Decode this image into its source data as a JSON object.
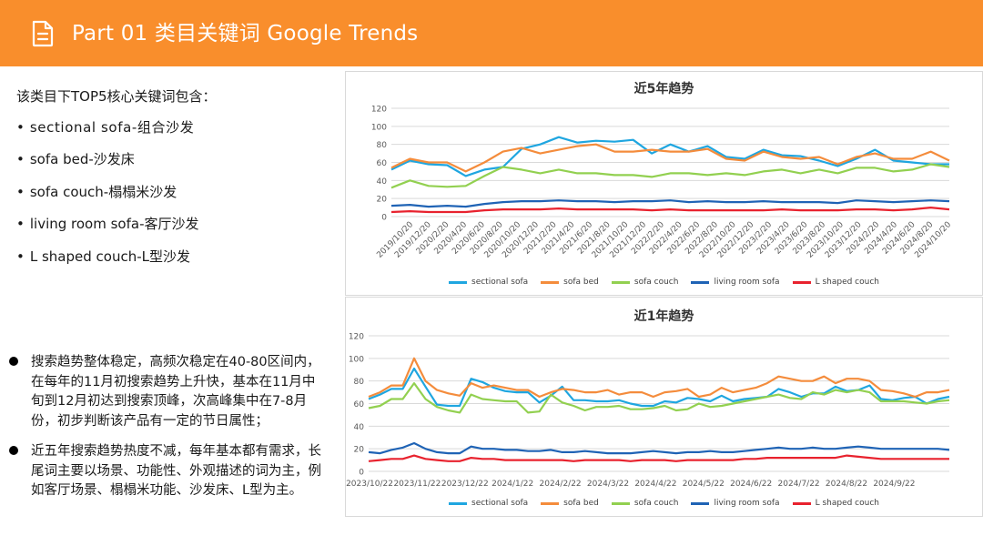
{
  "header": {
    "title": "Part 01 类目关键词 Google Trends"
  },
  "intro": "该类目下TOP5核心关键词包含：",
  "keywords": [
    {
      "bullet": "•",
      "label": "sectional sofa-组合沙发"
    },
    {
      "bullet": "•",
      "label": "sofa bed-沙发床"
    },
    {
      "bullet": "•",
      "label": "sofa couch-榻榻米沙发"
    },
    {
      "bullet": "•",
      "label": "living room sofa-客厅沙发"
    },
    {
      "bullet": "•",
      "label": "L shaped couch-L型沙发"
    }
  ],
  "notes": [
    "搜索趋势整体稳定，高频次稳定在40-80区间内，在每年的11月初搜索趋势上升快，基本在11月中旬到12月初达到搜索顶峰，次高峰集中在7-8月份，初步判断该产品有一定的节日属性；",
    "近五年搜索趋势热度不减，每年基本都有需求，长尾词主要以场景、功能性、外观描述的词为主，例如客厅场景、榻榻米功能、沙发床、L型为主。"
  ],
  "colors": {
    "header_bg": "#f98e2c",
    "sectional_sofa": "#1fa6e0",
    "sofa_bed": "#f48c3c",
    "sofa_couch": "#92d050",
    "living_room_sofa": "#1f63b5",
    "l_shaped_couch": "#e8222e"
  },
  "chart_data": [
    {
      "type": "line",
      "title": "近5年趋势",
      "ylim": [
        0,
        120
      ],
      "yticks": [
        0,
        20,
        40,
        60,
        80,
        100,
        120
      ],
      "grid": true,
      "legend": "bottom",
      "x_labels": [
        "2019/10/20",
        "2019/12/20",
        "2020/2/20",
        "2020/4/20",
        "2020/6/20",
        "2020/8/20",
        "2020/10/20",
        "2020/12/20",
        "2021/2/20",
        "2021/4/20",
        "2021/6/20",
        "2021/8/20",
        "2021/10/20",
        "2021/12/20",
        "2022/2/20",
        "2022/4/20",
        "2022/6/20",
        "2022/8/20",
        "2022/10/20",
        "2022/12/20",
        "2023/2/20",
        "2023/4/20",
        "2023/6/20",
        "2023/8/20",
        "2023/10/20",
        "2023/12/20",
        "2024/2/20",
        "2024/4/20",
        "2024/6/20",
        "2024/8/20",
        "2024/10/20"
      ],
      "series": [
        {
          "name": "sectional sofa",
          "values": [
            52,
            62,
            58,
            57,
            45,
            52,
            55,
            75,
            80,
            88,
            82,
            84,
            83,
            85,
            70,
            80,
            72,
            78,
            66,
            64,
            74,
            68,
            67,
            62,
            56,
            64,
            74,
            62,
            60,
            58,
            58
          ]
        },
        {
          "name": "sofa bed",
          "values": [
            54,
            64,
            60,
            60,
            50,
            60,
            72,
            76,
            70,
            74,
            78,
            80,
            72,
            72,
            74,
            72,
            72,
            75,
            64,
            62,
            72,
            66,
            64,
            66,
            58,
            66,
            70,
            64,
            64,
            72,
            62
          ]
        },
        {
          "name": "sofa couch",
          "values": [
            32,
            40,
            34,
            33,
            34,
            45,
            55,
            52,
            48,
            52,
            48,
            48,
            46,
            46,
            44,
            48,
            48,
            46,
            48,
            46,
            50,
            52,
            48,
            52,
            48,
            54,
            54,
            50,
            52,
            58,
            55
          ]
        },
        {
          "name": "living room sofa",
          "values": [
            12,
            13,
            11,
            12,
            11,
            14,
            16,
            17,
            17,
            18,
            17,
            17,
            16,
            17,
            17,
            18,
            16,
            17,
            16,
            16,
            17,
            16,
            16,
            16,
            15,
            18,
            17,
            16,
            17,
            18,
            17
          ]
        },
        {
          "name": "L shaped couch",
          "values": [
            5,
            6,
            5,
            5,
            5,
            7,
            8,
            8,
            8,
            9,
            8,
            8,
            8,
            8,
            7,
            8,
            7,
            7,
            7,
            7,
            7,
            8,
            7,
            7,
            7,
            8,
            8,
            7,
            8,
            10,
            8
          ]
        }
      ]
    },
    {
      "type": "line",
      "title": "近1年趋势",
      "ylim": [
        0,
        120
      ],
      "yticks": [
        0,
        20,
        40,
        60,
        80,
        100,
        120
      ],
      "grid": true,
      "legend": "bottom",
      "x_labels": [
        "2023/10/22",
        "2023/11/22",
        "2023/12/22",
        "2024/1/22",
        "2024/2/22",
        "2024/3/22",
        "2024/4/22",
        "2024/5/22",
        "2024/6/22",
        "2024/7/22",
        "2024/8/22",
        "2024/9/22"
      ],
      "series": [
        {
          "name": "sectional sofa",
          "values": [
            64,
            68,
            73,
            73,
            91,
            75,
            59,
            58,
            58,
            82,
            79,
            74,
            71,
            70,
            70,
            61,
            67,
            75,
            63,
            63,
            62,
            62,
            63,
            60,
            58,
            58,
            62,
            61,
            65,
            64,
            62,
            67,
            62,
            64,
            65,
            66,
            73,
            70,
            66,
            69,
            69,
            75,
            71,
            72,
            76,
            64,
            63,
            65,
            66,
            60,
            64,
            66
          ]
        },
        {
          "name": "sofa bed",
          "values": [
            66,
            70,
            76,
            76,
            100,
            80,
            72,
            69,
            67,
            78,
            74,
            76,
            74,
            72,
            72,
            66,
            70,
            73,
            72,
            70,
            70,
            72,
            68,
            70,
            70,
            66,
            70,
            71,
            73,
            66,
            68,
            74,
            70,
            72,
            74,
            78,
            84,
            82,
            80,
            80,
            84,
            78,
            82,
            82,
            80,
            72,
            71,
            69,
            66,
            70,
            70,
            72
          ]
        },
        {
          "name": "sofa couch",
          "values": [
            56,
            58,
            64,
            64,
            78,
            64,
            57,
            54,
            52,
            68,
            64,
            63,
            62,
            62,
            52,
            53,
            68,
            61,
            58,
            54,
            57,
            57,
            58,
            55,
            55,
            56,
            58,
            54,
            55,
            60,
            57,
            58,
            60,
            62,
            64,
            66,
            68,
            65,
            64,
            70,
            68,
            72,
            70,
            72,
            70,
            62,
            62,
            62,
            61,
            60,
            62,
            63
          ]
        },
        {
          "name": "living room sofa",
          "values": [
            17,
            16,
            19,
            21,
            25,
            20,
            17,
            16,
            16,
            22,
            20,
            20,
            19,
            19,
            18,
            18,
            19,
            17,
            17,
            18,
            17,
            16,
            16,
            16,
            17,
            18,
            17,
            16,
            17,
            17,
            18,
            17,
            17,
            18,
            19,
            20,
            21,
            20,
            20,
            21,
            20,
            20,
            21,
            22,
            21,
            20,
            20,
            20,
            20,
            20,
            20,
            19
          ]
        },
        {
          "name": "L shaped couch",
          "values": [
            9,
            10,
            11,
            11,
            14,
            11,
            10,
            9,
            9,
            12,
            11,
            11,
            10,
            10,
            10,
            10,
            10,
            10,
            9,
            10,
            10,
            10,
            10,
            9,
            10,
            10,
            10,
            9,
            10,
            10,
            10,
            10,
            10,
            11,
            11,
            12,
            12,
            12,
            12,
            12,
            12,
            12,
            14,
            13,
            12,
            11,
            11,
            11,
            11,
            11,
            11,
            11
          ]
        }
      ]
    }
  ]
}
